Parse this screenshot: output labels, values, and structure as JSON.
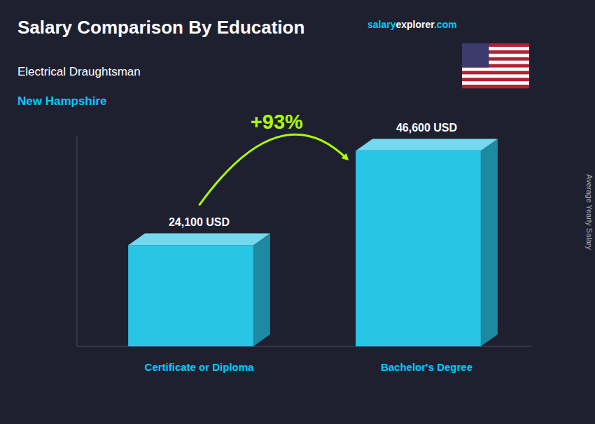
{
  "chart_data": {
    "type": "bar",
    "title": "Salary Comparison By Education",
    "subtitle": [
      "Electrical Draughtsman",
      "New Hampshire"
    ],
    "categories": [
      "Certificate or Diploma",
      "Bachelor's Degree"
    ],
    "values": [
      24100,
      46600
    ],
    "value_labels": [
      "24,100 USD",
      "46,600 USD"
    ],
    "data_labels": true,
    "color": "#29c5e6",
    "ylim": [
      0,
      50000
    ],
    "tick_labels": false,
    "grid": false,
    "ylabel": "Average Yearly Salary",
    "annotations": [
      {
        "text": "+93%",
        "color": "#aaff00"
      }
    ],
    "watermark": [
      "salary",
      "explorer",
      ".com"
    ]
  }
}
